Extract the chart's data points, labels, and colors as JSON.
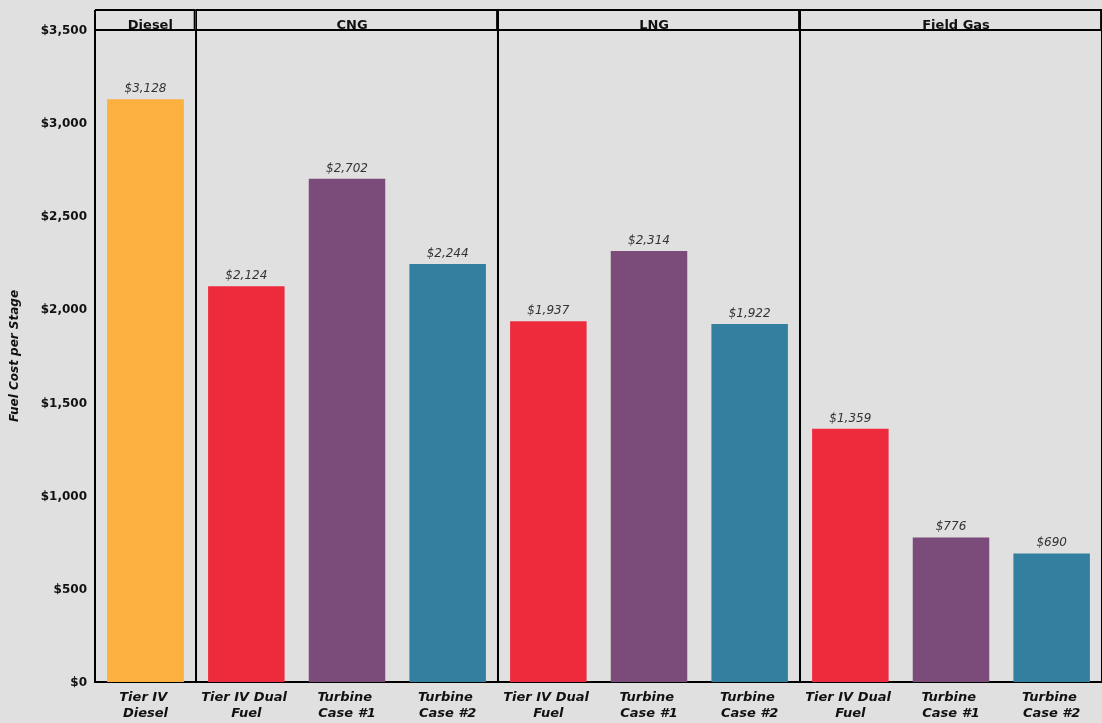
{
  "chart_data": [
    {
      "type": "bar",
      "title": "Diesel",
      "ylabel": "Fuel Cost per Stage",
      "categories": [
        "Tier IV Diesel"
      ],
      "values": [
        3128
      ],
      "colors": [
        "#fbb040"
      ],
      "value_labels": [
        "$3,128"
      ],
      "ylim": [
        0,
        3500
      ],
      "yticks": [
        {
          "value": 0,
          "label": "$0"
        },
        {
          "value": 500,
          "label": "$500"
        },
        {
          "value": 1000,
          "label": "$1,000"
        },
        {
          "value": 1500,
          "label": "$1,500"
        },
        {
          "value": 2000,
          "label": "$2,000"
        },
        {
          "value": 2500,
          "label": "$2,500"
        },
        {
          "value": 3000,
          "label": "$3,000"
        },
        {
          "value": 3500,
          "label": "$3,500"
        }
      ]
    },
    {
      "type": "bar",
      "title": "CNG",
      "categories": [
        "Tier IV Dual Fuel",
        "Turbine Case #1",
        "Turbine Case #2"
      ],
      "values": [
        2124,
        2702,
        2244
      ],
      "colors": [
        "#ee2a3d",
        "#7b4b7a",
        "#337fa0"
      ],
      "value_labels": [
        "$2,124",
        "$2,702",
        "$2,244"
      ],
      "ylim": [
        0,
        3500
      ],
      "tick_labels": "x"
    },
    {
      "type": "bar",
      "title": "LNG",
      "categories": [
        "Tier IV Dual Fuel",
        "Turbine Case #1",
        "Turbine Case #2"
      ],
      "values": [
        1937,
        2314,
        1922
      ],
      "colors": [
        "#ee2a3d",
        "#7b4b7a",
        "#337fa0"
      ],
      "value_labels": [
        "$1,937",
        "$2,314",
        "$1,922"
      ],
      "ylim": [
        0,
        3500
      ],
      "tick_labels": "x"
    },
    {
      "type": "bar",
      "title": "Field Gas",
      "categories": [
        "Tier IV Dual Fuel",
        "Turbine Case #1",
        "Turbine Case #2"
      ],
      "values": [
        1359,
        776,
        690
      ],
      "colors": [
        "#ee2a3d",
        "#7b4b7a",
        "#337fa0"
      ],
      "value_labels": [
        "$1,359",
        "$776",
        "$690"
      ],
      "ylim": [
        0,
        3500
      ],
      "tick_labels": "x"
    }
  ]
}
